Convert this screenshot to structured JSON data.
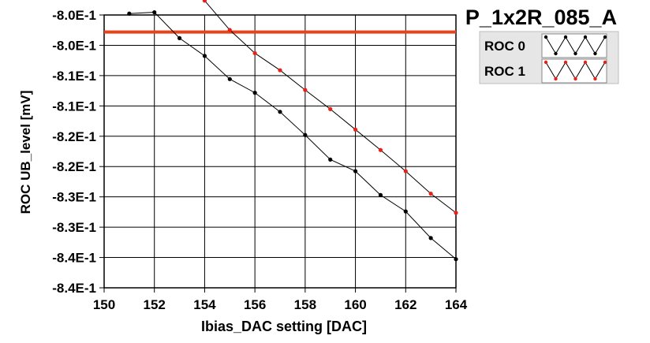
{
  "window": {
    "title": "P_1x2R_085_A"
  },
  "colors": {
    "background": "#ffffff",
    "grid": "#000000",
    "threshold": "#e8431a",
    "roc0": "#000000",
    "roc1": "#e8201a",
    "legend_bg": "#e6e6e6"
  },
  "chart_data": {
    "type": "line",
    "title": "P_1x2R_085_A",
    "xlabel": "Ibias_DAC setting [DAC]",
    "ylabel": "ROC UB_level [mV]",
    "xlim": [
      150,
      164
    ],
    "ylim": [
      -0.84,
      -0.8
    ],
    "x_ticks": [
      "150",
      "152",
      "154",
      "156",
      "158",
      "160",
      "162",
      "164"
    ],
    "y_ticks": [
      "-8.0E-1",
      "-8.0E-1",
      "-8.1E-1",
      "-8.1E-1",
      "-8.2E-1",
      "-8.2E-1",
      "-8.3E-1",
      "-8.3E-1",
      "-8.4E-1",
      "-8.4E-1"
    ],
    "grid": true,
    "legend": "top-right",
    "threshold": {
      "y": -0.8025
    },
    "series": [
      {
        "name": "ROC 0",
        "x": [
          151,
          152,
          153,
          154,
          155,
          156,
          157,
          158,
          159,
          160,
          161,
          162,
          163,
          164
        ],
        "y": [
          -0.7998,
          -0.7996,
          -0.8034,
          -0.806,
          -0.8094,
          -0.8114,
          -0.8142,
          -0.8176,
          -0.8212,
          -0.8229,
          -0.8264,
          -0.8288,
          -0.8327,
          -0.8358
        ]
      },
      {
        "name": "ROC 1",
        "x": [
          154,
          155,
          156,
          157,
          158,
          159,
          160,
          161,
          162,
          163,
          164
        ],
        "y": [
          -0.7979,
          -0.8022,
          -0.8056,
          -0.8081,
          -0.811,
          -0.8138,
          -0.8168,
          -0.8198,
          -0.8229,
          -0.8262,
          -0.829
        ]
      }
    ]
  }
}
